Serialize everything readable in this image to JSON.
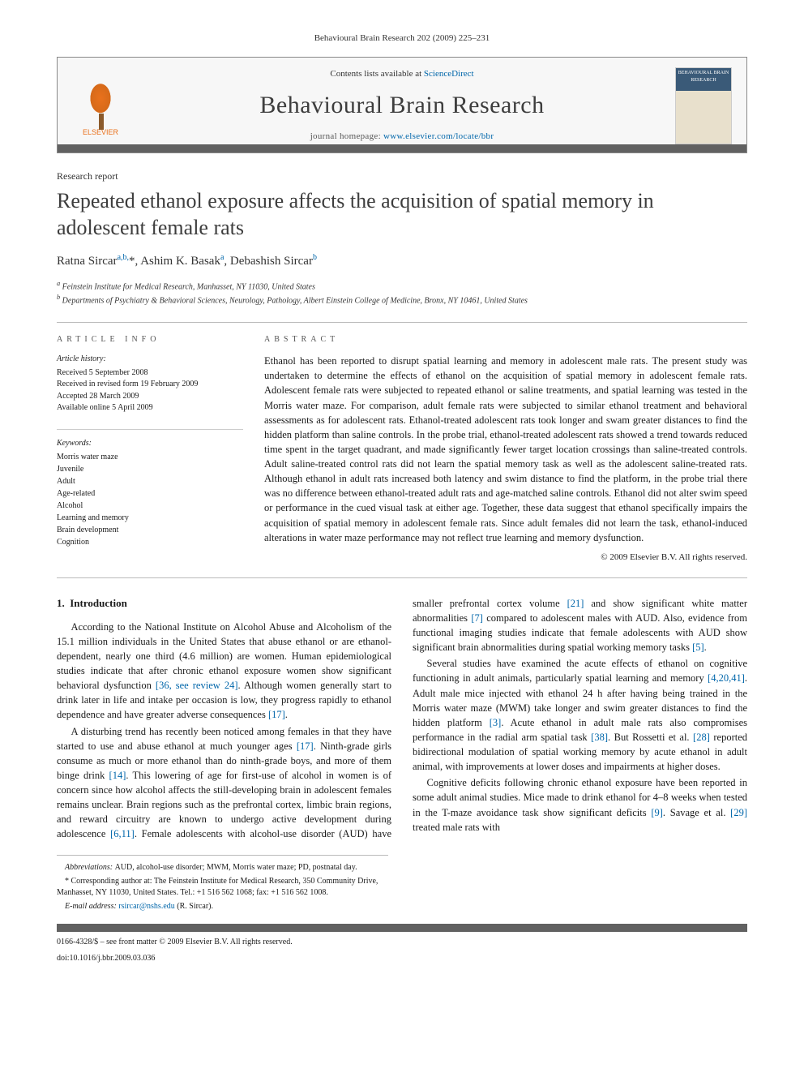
{
  "running_header": "Behavioural Brain Research 202 (2009) 225–231",
  "journal_box": {
    "publisher_name": "ELSEVIER",
    "contents_prefix": "Contents lists available at ",
    "contents_link": "ScienceDirect",
    "journal_title": "Behavioural Brain Research",
    "homepage_prefix": "journal homepage: ",
    "homepage_url": "www.elsevier.com/locate/bbr",
    "cover_top": "BEHAVIOURAL BRAIN RESEARCH"
  },
  "article": {
    "type": "Research report",
    "title": "Repeated ethanol exposure affects the acquisition of spatial memory in adolescent female rats",
    "authors_html": "Ratna Sircar",
    "authors": [
      {
        "name": "Ratna Sircar",
        "sup": "a,b,",
        "star": "*"
      },
      {
        "name": "Ashim K. Basak",
        "sup": "a"
      },
      {
        "name": "Debashish Sircar",
        "sup": "b"
      }
    ],
    "affiliations": {
      "a": "Feinstein Institute for Medical Research, Manhasset, NY 11030, United States",
      "b": "Departments of Psychiatry & Behavioral Sciences, Neurology, Pathology, Albert Einstein College of Medicine, Bronx, NY 10461, United States"
    }
  },
  "info": {
    "heading": "article info",
    "history_head": "Article history:",
    "history": {
      "received": "Received 5 September 2008",
      "revised": "Received in revised form 19 February 2009",
      "accepted": "Accepted 28 March 2009",
      "online": "Available online 5 April 2009"
    },
    "keywords_head": "Keywords:",
    "keywords": [
      "Morris water maze",
      "Juvenile",
      "Adult",
      "Age-related",
      "Alcohol",
      "Learning and memory",
      "Brain development",
      "Cognition"
    ]
  },
  "abstract": {
    "heading": "abstract",
    "text": "Ethanol has been reported to disrupt spatial learning and memory in adolescent male rats. The present study was undertaken to determine the effects of ethanol on the acquisition of spatial memory in adolescent female rats. Adolescent female rats were subjected to repeated ethanol or saline treatments, and spatial learning was tested in the Morris water maze. For comparison, adult female rats were subjected to similar ethanol treatment and behavioral assessments as for adolescent rats. Ethanol-treated adolescent rats took longer and swam greater distances to find the hidden platform than saline controls. In the probe trial, ethanol-treated adolescent rats showed a trend towards reduced time spent in the target quadrant, and made significantly fewer target location crossings than saline-treated controls. Adult saline-treated control rats did not learn the spatial memory task as well as the adolescent saline-treated rats. Although ethanol in adult rats increased both latency and swim distance to find the platform, in the probe trial there was no difference between ethanol-treated adult rats and age-matched saline controls. Ethanol did not alter swim speed or performance in the cued visual task at either age. Together, these data suggest that ethanol specifically impairs the acquisition of spatial memory in adolescent female rats. Since adult females did not learn the task, ethanol-induced alterations in water maze performance may not reflect true learning and memory dysfunction.",
    "copyright": "© 2009 Elsevier B.V. All rights reserved."
  },
  "body": {
    "section_number": "1.",
    "section_title": "Introduction",
    "p1": "According to the National Institute on Alcohol Abuse and Alcoholism of the 15.1 million individuals in the United States that abuse ethanol or are ethanol-dependent, nearly one third (4.6 million) are women. Human epidemiological studies indicate that after chronic ethanol exposure women show significant behavioral dysfunction ",
    "p1_ref": "[36, see review 24]",
    "p1b": ". Although women generally start to drink later in life and intake per occasion is low, they progress rapidly to ethanol dependence and have greater adverse consequences ",
    "p1b_ref": "[17]",
    "p1c": ".",
    "p2": "A disturbing trend has recently been noticed among females in that they have started to use and abuse ethanol at much younger ages ",
    "p2_ref": "[17]",
    "p2b": ". Ninth-grade girls consume as much or more ethanol than do ninth-grade boys, and more of them binge drink ",
    "p2b_ref": "[14]",
    "p2c": ". This lowering of age for first-use of alcohol in women is of concern",
    "p3": "since how alcohol affects the still-developing brain in adolescent females remains unclear. Brain regions such as the prefrontal cortex, limbic brain regions, and reward circuitry are known to undergo active development during adolescence ",
    "p3_ref": "[6,11]",
    "p3b": ". Female adolescents with alcohol-use disorder (AUD) have smaller prefrontal cortex volume ",
    "p3b_ref": "[21]",
    "p3c": " and show significant white matter abnormalities ",
    "p3c_ref": "[7]",
    "p3d": " compared to adolescent males with AUD. Also, evidence from functional imaging studies indicate that female adolescents with AUD show significant brain abnormalities during spatial working memory tasks ",
    "p3d_ref": "[5]",
    "p3e": ".",
    "p4": "Several studies have examined the acute effects of ethanol on cognitive functioning in adult animals, particularly spatial learning and memory ",
    "p4_ref": "[4,20,41]",
    "p4b": ". Adult male mice injected with ethanol 24 h after having being trained in the Morris water maze (MWM) take longer and swim greater distances to find the hidden platform ",
    "p4b_ref": "[3]",
    "p4c": ". Acute ethanol in adult male rats also compromises performance in the radial arm spatial task ",
    "p4c_ref": "[38]",
    "p4d": ". But Rossetti et al. ",
    "p4d_ref": "[28]",
    "p4e": " reported bidirectional modulation of spatial working memory by acute ethanol in adult animal, with improvements at lower doses and impairments at higher doses.",
    "p5": "Cognitive deficits following chronic ethanol exposure have been reported in some adult animal studies. Mice made to drink ethanol for 4–8 weeks when tested in the T-maze avoidance task show significant deficits ",
    "p5_ref": "[9]",
    "p5b": ". Savage et al. ",
    "p5b_ref": "[29]",
    "p5c": " treated male rats with"
  },
  "footnotes": {
    "abbrev_label": "Abbreviations:",
    "abbrev": "AUD, alcohol-use disorder; MWM, Morris water maze; PD, postnatal day.",
    "corr_label": "Corresponding author at:",
    "corr": "The Feinstein Institute for Medical Research, 350 Community Drive, Manhasset, NY 11030, United States. Tel.: +1 516 562 1068; fax: +1 516 562 1008.",
    "email_label": "E-mail address:",
    "email": "rsircar@nshs.edu",
    "email_who": "(R. Sircar).",
    "front_matter": "0166-4328/$ – see front matter © 2009 Elsevier B.V. All rights reserved.",
    "doi": "doi:10.1016/j.bbr.2009.03.036"
  },
  "colors": {
    "link": "#0066aa",
    "bar": "#616161",
    "elsevier": "#e9711c"
  }
}
